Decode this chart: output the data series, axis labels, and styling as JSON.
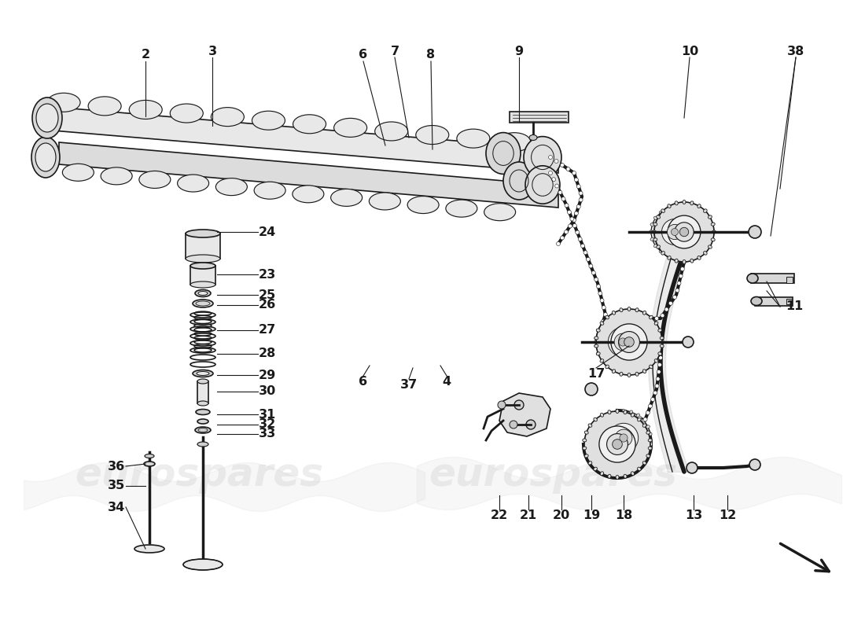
{
  "bg": "#ffffff",
  "lc": "#1a1a1a",
  "fc_light": "#e8e8e8",
  "fc_mid": "#d0d0d0",
  "fc_dark": "#b8b8b8",
  "wm_color": "#cccccc",
  "wm_alpha": 0.35,
  "figsize": [
    11.0,
    8.0
  ],
  "dpi": 100
}
